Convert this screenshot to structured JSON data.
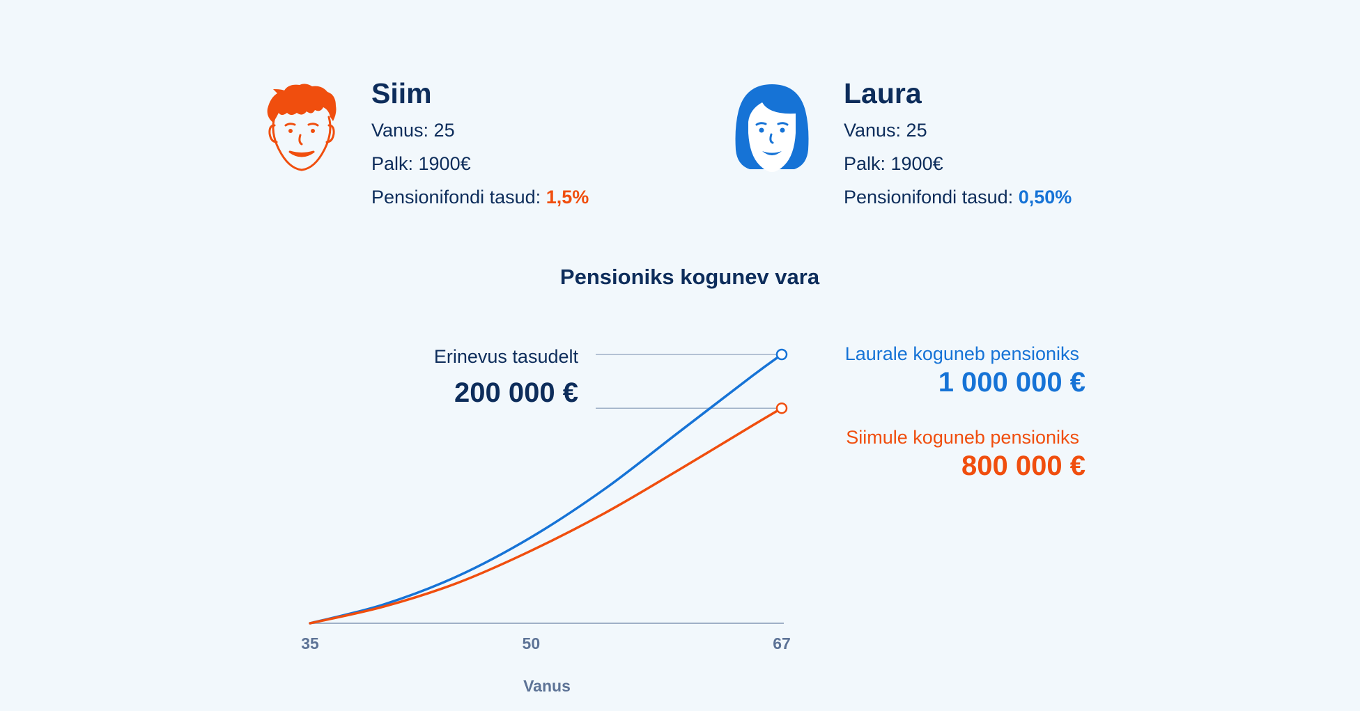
{
  "people": [
    {
      "name": "Siim",
      "age_label": "Vanus: 25",
      "salary_label": "Palk: 1900€",
      "fee_label": "Pensionifondi tasud: ",
      "fee_value": "1,5%",
      "icon": "man-face-icon",
      "color": "#f04e0e"
    },
    {
      "name": "Laura",
      "age_label": "Vanus: 25",
      "salary_label": "Palk: 1900€",
      "fee_label": "Pensionifondi tasud: ",
      "fee_value": "0,50%",
      "icon": "woman-face-icon",
      "color": "#1673d6"
    }
  ],
  "difference": {
    "label": "Erinevus tasudelt",
    "value": "200 000 €"
  },
  "callouts": {
    "laura": {
      "label": "Laurale koguneb pensioniks",
      "value": "1 000 000 €"
    },
    "siim": {
      "label": "Siimule koguneb pensioniks",
      "value": "800 000 €"
    }
  },
  "chart_data": {
    "type": "line",
    "title": "Pensioniks kogunev vara",
    "xlabel": "Vanus",
    "ylabel": "",
    "x_ticks": [
      35,
      50,
      67
    ],
    "xlim": [
      35,
      67
    ],
    "ylim": [
      0,
      1000000
    ],
    "grid": false,
    "series": [
      {
        "name": "Laura",
        "color": "#1673d6",
        "x": [
          35,
          40,
          45,
          50,
          55,
          60,
          65,
          67
        ],
        "values": [
          0,
          70000,
          175000,
          320000,
          500000,
          710000,
          920000,
          1000000
        ]
      },
      {
        "name": "Siim",
        "color": "#f04e0e",
        "x": [
          35,
          40,
          45,
          50,
          55,
          60,
          65,
          67
        ],
        "values": [
          0,
          62000,
          150000,
          270000,
          410000,
          570000,
          735000,
          800000
        ]
      }
    ]
  }
}
